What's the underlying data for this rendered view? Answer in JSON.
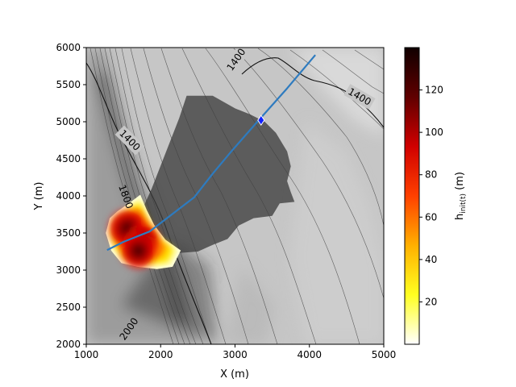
{
  "chart_data": {
    "type": "heatmap",
    "title": "",
    "xlabel": "X (m)",
    "ylabel": "Y (m)",
    "xlim": [
      1000,
      5000
    ],
    "ylim": [
      2000,
      6000
    ],
    "x_ticks": [
      "1000",
      "2000",
      "3000",
      "4000",
      "5000"
    ],
    "y_ticks": [
      "2000",
      "2500",
      "3000",
      "3500",
      "4000",
      "4500",
      "5000",
      "5500",
      "6000"
    ],
    "contour_labels": [
      "1400",
      "1400",
      "1400",
      "1800",
      "2000"
    ],
    "colorbar": {
      "label": "h_init(t) (m)",
      "range": [
        0,
        140
      ],
      "ticks": [
        "20",
        "40",
        "60",
        "80",
        "100",
        "120"
      ],
      "colors": [
        "#ffffff",
        "#ffff20",
        "#ffb000",
        "#ff4000",
        "#d00000",
        "#600000",
        "#100000"
      ]
    },
    "path": {
      "color": "#2e7bbf",
      "points": [
        [
          1280,
          3270
        ],
        [
          1500,
          3380
        ],
        [
          1850,
          3520
        ],
        [
          2150,
          3750
        ],
        [
          2450,
          3980
        ],
        [
          2700,
          4300
        ],
        [
          2950,
          4600
        ],
        [
          3300,
          5000
        ],
        [
          3700,
          5450
        ],
        [
          4080,
          5900
        ]
      ]
    },
    "marker": {
      "x": 3350,
      "y": 5020,
      "color": "#1020ff"
    },
    "release_zone": {
      "polygon": [
        [
          1330,
          3690
        ],
        [
          1430,
          3780
        ],
        [
          1600,
          3900
        ],
        [
          1720,
          3990
        ],
        [
          1800,
          3800
        ],
        [
          1900,
          3600
        ],
        [
          2050,
          3400
        ],
        [
          2250,
          3260
        ],
        [
          2150,
          3060
        ],
        [
          1950,
          3030
        ],
        [
          1700,
          3060
        ],
        [
          1480,
          3110
        ],
        [
          1350,
          3270
        ],
        [
          1280,
          3500
        ]
      ],
      "core": [
        {
          "x": 1560,
          "y": 3560,
          "value": 130
        },
        {
          "x": 1760,
          "y": 3400,
          "value": 95
        },
        {
          "x": 1700,
          "y": 3260,
          "value": 110
        }
      ]
    },
    "deposit_zone": {
      "polygon": [
        [
          2250,
          5050
        ],
        [
          2350,
          5350
        ],
        [
          2700,
          5350
        ],
        [
          3000,
          5180
        ],
        [
          3200,
          5100
        ],
        [
          3400,
          5000
        ],
        [
          3550,
          4850
        ],
        [
          3700,
          4600
        ],
        [
          3750,
          4400
        ],
        [
          3700,
          4200
        ],
        [
          3750,
          4050
        ],
        [
          3800,
          3920
        ],
        [
          3600,
          3900
        ],
        [
          3500,
          3730
        ],
        [
          3250,
          3700
        ],
        [
          3050,
          3600
        ],
        [
          2900,
          3420
        ],
        [
          2700,
          3340
        ],
        [
          2500,
          3250
        ],
        [
          2250,
          3230
        ],
        [
          2050,
          3220
        ],
        [
          1700,
          3700
        ],
        [
          1880,
          4100
        ]
      ]
    }
  }
}
